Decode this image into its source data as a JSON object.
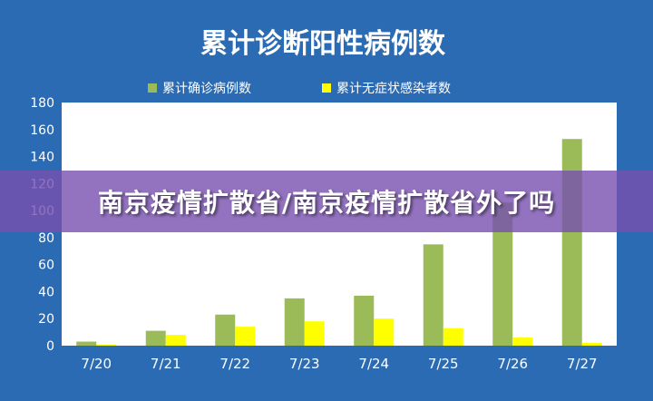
{
  "banner": {
    "text": "南京疫情扩散省/南京疫情扩散省外了吗"
  },
  "colors": {
    "background": "#2b6bb4",
    "plot_area": "#ffffff",
    "series_confirmed": "#9bbb59",
    "series_asymptomatic": "#ffff00",
    "banner_overlay": "#7850af"
  },
  "chart_data": {
    "type": "bar",
    "title": "累计诊断阳性病例数",
    "categories": [
      "7/20",
      "7/21",
      "7/22",
      "7/23",
      "7/24",
      "7/25",
      "7/26",
      "7/27"
    ],
    "series": [
      {
        "name": "累计确诊病例数",
        "values": [
          3,
          11,
          23,
          35,
          37,
          75,
          106,
          153
        ]
      },
      {
        "name": "累计无症状感染者数",
        "values": [
          1,
          8,
          14,
          18,
          20,
          13,
          6,
          2
        ]
      }
    ],
    "ylim": [
      0,
      180
    ],
    "yticks": [
      0,
      20,
      40,
      60,
      80,
      100,
      120,
      140,
      160,
      180
    ],
    "xlabel": "",
    "ylabel": "",
    "legend": "top",
    "grid": false
  }
}
